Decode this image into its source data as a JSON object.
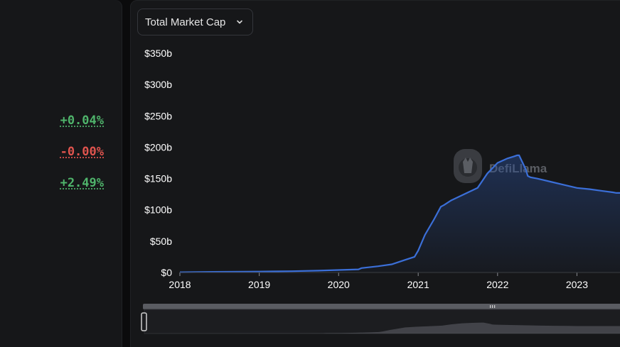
{
  "left": {
    "changes": [
      {
        "text": "+0.04%",
        "tone": "pos"
      },
      {
        "text": "-0.00%",
        "tone": "neg"
      },
      {
        "text": "+2.49%",
        "tone": "pos"
      }
    ]
  },
  "selector": {
    "label": "Total Market Cap",
    "icon": "chevron-down-icon"
  },
  "watermark": {
    "text": "DefiLlama"
  },
  "colors": {
    "line": "#3b6fd8",
    "positive": "#4fb46b",
    "negative": "#e0544e",
    "background": "#161719"
  },
  "chart_data": {
    "type": "area",
    "ylim": [
      0,
      350
    ],
    "xlim": [
      "2018-01-01",
      "2023-07-01"
    ],
    "y_ticks": [
      0,
      50,
      100,
      150,
      200,
      250,
      300,
      350
    ],
    "y_tick_labels": [
      "$0",
      "$50b",
      "$100b",
      "$150b",
      "$200b",
      "$250b",
      "$300b",
      "$350b"
    ],
    "x_tick_labels": [
      "2018",
      "2019",
      "2020",
      "2021",
      "2022",
      "2023"
    ],
    "series": [
      {
        "x": [
          "2018-01-01",
          "2018-06-01",
          "2019-01-01",
          "2019-06-01",
          "2019-10-01",
          "2020-01-01",
          "2020-04-01",
          "2020-04-15",
          "2020-07-01",
          "2020-09-01",
          "2020-11-01",
          "2020-12-15",
          "2021-01-01",
          "2021-02-01",
          "2021-03-15",
          "2021-04-15",
          "2021-05-01",
          "2021-06-01",
          "2021-08-01",
          "2021-10-01",
          "2021-11-15",
          "2022-01-01",
          "2022-02-15",
          "2022-03-15",
          "2022-04-01",
          "2022-04-10",
          "2022-05-10",
          "2022-05-20",
          "2022-06-01",
          "2022-07-01",
          "2022-09-01",
          "2022-11-01",
          "2023-01-01",
          "2023-03-01",
          "2023-05-01",
          "2023-06-15",
          "2023-07-01"
        ],
        "values": [
          0.5,
          1,
          1.5,
          2,
          3,
          4,
          5,
          7,
          10,
          13,
          20,
          25,
          35,
          60,
          85,
          105,
          108,
          115,
          125,
          135,
          158,
          175,
          182,
          185,
          187,
          187,
          165,
          154,
          152,
          150,
          145,
          140,
          135,
          133,
          130,
          128,
          127
        ]
      }
    ]
  }
}
